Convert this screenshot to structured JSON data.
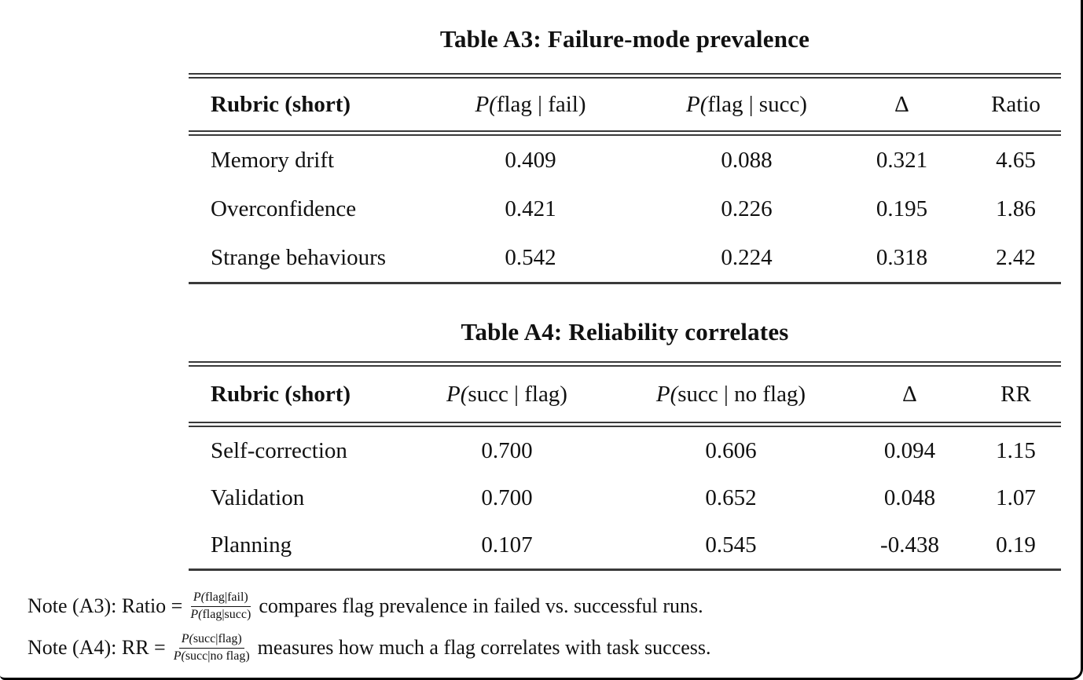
{
  "page": {
    "background": "#ffffff",
    "frame_color": "#000000",
    "text_color": "#111111",
    "rule_color": "#3a3a3a"
  },
  "tables": [
    {
      "title": "Table A3: Failure-mode prevalence",
      "headers": [
        "Rubric (short)",
        "P(flag | fail)",
        "P(flag | succ)",
        "Δ",
        "Ratio"
      ],
      "rows": [
        [
          "Memory drift",
          "0.409",
          "0.088",
          "0.321",
          "4.65"
        ],
        [
          "Overconfidence",
          "0.421",
          "0.226",
          "0.195",
          "1.86"
        ],
        [
          "Strange behaviours",
          "0.542",
          "0.224",
          "0.318",
          "2.42"
        ]
      ]
    },
    {
      "title": "Table A4: Reliability correlates",
      "headers": [
        "Rubric (short)",
        "P(succ | flag)",
        "P(succ | no flag)",
        "Δ",
        "RR"
      ],
      "rows": [
        [
          "Self-correction",
          "0.700",
          "0.606",
          "0.094",
          "1.15"
        ],
        [
          "Validation",
          "0.700",
          "0.652",
          "0.048",
          "1.07"
        ],
        [
          "Planning",
          "0.107",
          "0.545",
          "-0.438",
          "0.19"
        ]
      ]
    }
  ],
  "notes": [
    {
      "prefix": "Note (A3): Ratio =",
      "frac_num": "P(flag|fail)",
      "frac_den": "P(flag|succ)",
      "suffix": "compares flag prevalence in failed vs. successful runs."
    },
    {
      "prefix": "Note (A4): RR =",
      "frac_num": "P(succ|flag)",
      "frac_den": "P(succ|no flag)",
      "suffix": "measures how much a flag correlates with task success."
    }
  ]
}
